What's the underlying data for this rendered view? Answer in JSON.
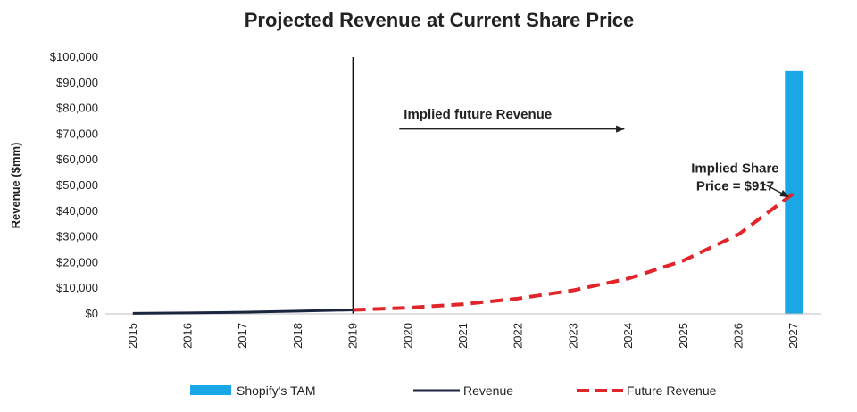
{
  "chart_data": {
    "type": "line",
    "title": "Projected Revenue at Current Share Price",
    "xlabel": "",
    "ylabel": "Revenue ($mm)",
    "ylim": [
      0,
      100000
    ],
    "y_ticks": [
      "$0",
      "$10,000",
      "$20,000",
      "$30,000",
      "$40,000",
      "$50,000",
      "$60,000",
      "$70,000",
      "$80,000",
      "$90,000",
      "$100,000"
    ],
    "categories": [
      "2015",
      "2016",
      "2017",
      "2018",
      "2019",
      "2020",
      "2021",
      "2022",
      "2023",
      "2024",
      "2025",
      "2026",
      "2027"
    ],
    "series": [
      {
        "name": "Shopify's TAM",
        "kind": "bar",
        "color": "#1aa7e6",
        "values": [
          null,
          null,
          null,
          null,
          null,
          null,
          null,
          null,
          null,
          null,
          null,
          null,
          94500
        ]
      },
      {
        "name": "Revenue",
        "kind": "line",
        "color": "#1c2540",
        "values": [
          205,
          389,
          673,
          1073,
          1578,
          null,
          null,
          null,
          null,
          null,
          null,
          null,
          null
        ]
      },
      {
        "name": "Future Revenue",
        "kind": "dashed-line",
        "color": "#e0262a",
        "values": [
          null,
          null,
          null,
          null,
          1578,
          2400,
          3800,
          6000,
          9200,
          13800,
          20800,
          31000,
          47000
        ]
      }
    ],
    "vertical_marker_category": "2019",
    "annotations": [
      {
        "text": "Implied future Revenue",
        "arrow": "right"
      },
      {
        "text_lines": [
          "Implied Share",
          "Price = $917"
        ],
        "arrow_to": {
          "category": "2027",
          "value": 47000
        }
      }
    ],
    "grid": false,
    "legend_position": "bottom"
  }
}
